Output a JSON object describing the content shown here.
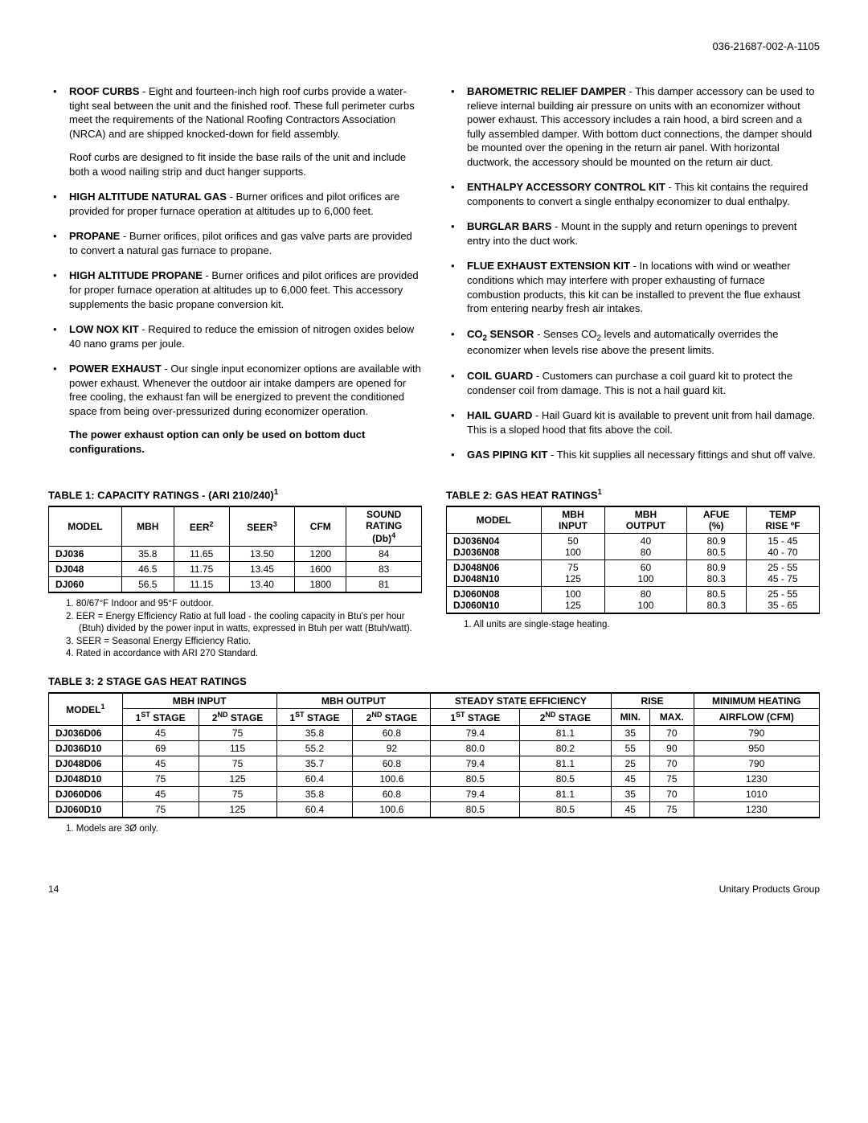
{
  "doc_number": "036-21687-002-A-1105",
  "left_items": [
    {
      "term": "ROOF CURBS",
      "text": " - Eight and fourteen-inch high roof curbs provide a water-tight seal between the unit and the finished roof. These full perimeter curbs meet the requirements of the National Roofing Contractors Association (NRCA) and are shipped knocked-down for field assembly.",
      "sub": "Roof curbs are designed to fit inside the base rails of the unit and include both a wood nailing strip and duct hanger supports."
    },
    {
      "term": "HIGH ALTITUDE NATURAL GAS",
      "text": " - Burner orifices and pilot orifices are provided for proper furnace operation at altitudes up to 6,000 feet."
    },
    {
      "term": "PROPANE",
      "text": " - Burner orifices, pilot orifices and gas valve parts are provided to convert a natural gas furnace to propane."
    },
    {
      "term": "HIGH ALTITUDE PROPANE",
      "text": " - Burner orifices and pilot orifices are provided for proper furnace operation at altitudes up to 6,000 feet. This accessory supplements the basic propane conversion kit."
    },
    {
      "term": "LOW NOX KIT",
      "text": " - Required to reduce the emission of nitrogen oxides below 40 nano grams per joule."
    },
    {
      "term": "POWER EXHAUST",
      "text": " - Our single input economizer options are available with power exhaust. Whenever the outdoor air intake dampers are opened for free cooling, the exhaust fan will be energized to prevent the conditioned space from being over-pressurized during economizer operation.",
      "note": "The power exhaust option can only be used on bottom duct configurations."
    }
  ],
  "right_items": [
    {
      "term": "BAROMETRIC RELIEF DAMPER",
      "text": " - This damper accessory can be used to relieve internal building air pressure on units with an economizer without power exhaust. This accessory includes a rain hood, a bird screen and a fully assembled damper. With bottom duct connections, the damper should be mounted over the opening in the return air panel. With horizontal ductwork, the accessory should be mounted on the return air duct."
    },
    {
      "term": "ENTHALPY ACCESSORY CONTROL KIT",
      "text": " - This kit contains the required components to convert a single enthalpy economizer to dual enthalpy."
    },
    {
      "term": "BURGLAR BARS",
      "text": " - Mount in the supply and return openings to prevent entry into the duct work."
    },
    {
      "term": "FLUE EXHAUST EXTENSION KIT",
      "text": " - In locations with wind or weather conditions which may interfere with proper exhausting of furnace combustion products, this kit can be installed to prevent the flue exhaust from entering nearby fresh air intakes."
    },
    {
      "term": "CO",
      "sub2": "2",
      "term2": " SENSOR",
      "text": " - Senses CO",
      "sub2b": "2",
      "text2": " levels and automatically overrides the economizer when levels rise above the present limits."
    },
    {
      "term": "COIL GUARD",
      "text": " - Customers can purchase a coil guard kit to protect the condenser coil from damage. This is not a hail guard kit."
    },
    {
      "term": "HAIL GUARD",
      "text": " - Hail Guard kit is available to prevent unit from hail damage. This is a sloped hood that fits above the coil."
    },
    {
      "term": "GAS PIPING KIT",
      "text": " - This kit supplies all necessary fittings and shut off valve."
    }
  ],
  "t1": {
    "title_a": "TABLE 1: CAPACITY RATINGS - (ARI 210/240)",
    "title_sup": "1",
    "headers": [
      "MODEL",
      "MBH",
      "EER",
      "SEER",
      "CFM",
      "SOUND RATING (Db)"
    ],
    "header_sup": {
      "EER": "2",
      "SEER": "3",
      "SOUND": "4"
    },
    "rows": [
      [
        "DJ036",
        "35.8",
        "11.65",
        "13.50",
        "1200",
        "84"
      ],
      [
        "DJ048",
        "46.5",
        "11.75",
        "13.45",
        "1600",
        "83"
      ],
      [
        "DJ060",
        "56.5",
        "11.15",
        "13.40",
        "1800",
        "81"
      ]
    ],
    "footnotes": [
      "1.  80/67°F Indoor and 95°F outdoor.",
      "2.  EER = Energy Efficiency Ratio at full load - the cooling capacity in Btu's per hour (Btuh) divided by the power input in watts, expressed in Btuh per watt (Btuh/watt).",
      "3.  SEER = Seasonal Energy Efficiency Ratio.",
      "4.  Rated in accordance with ARI 270 Standard."
    ]
  },
  "t2": {
    "title_a": "TABLE 2: GAS HEAT RATINGS",
    "title_sup": "1",
    "headers": [
      "MODEL",
      "MBH INPUT",
      "MBH OUTPUT",
      "AFUE (%)",
      "TEMP RISE ºF"
    ],
    "rows": [
      [
        "DJ036N04",
        "50",
        "40",
        "80.9",
        "15 - 45"
      ],
      [
        "DJ036N08",
        "100",
        "80",
        "80.5",
        "40 - 70"
      ],
      [
        "DJ048N06",
        "75",
        "60",
        "80.9",
        "25 - 55"
      ],
      [
        "DJ048N10",
        "125",
        "100",
        "80.3",
        "45 - 75"
      ],
      [
        "DJ060N08",
        "100",
        "80",
        "80.5",
        "25 - 55"
      ],
      [
        "DJ060N10",
        "125",
        "100",
        "80.3",
        "35 - 65"
      ]
    ],
    "footnotes": [
      "1.  All units are single-stage heating."
    ]
  },
  "t3": {
    "title_a": "TABLE 3: 2 STAGE GAS HEAT RATINGS",
    "model_sup": "1",
    "groups": [
      "MBH INPUT",
      "MBH OUTPUT",
      "STEADY STATE EFFICIENCY",
      "RISE",
      "MINIMUM HEATING"
    ],
    "sub": [
      "1ST STAGE",
      "2ND STAGE",
      "1ST STAGE",
      "2ND STAGE",
      "1ST STAGE",
      "2ND STAGE",
      "MIN.",
      "MAX.",
      "AIRFLOW (CFM)"
    ],
    "rows": [
      [
        "DJ036D06",
        "45",
        "75",
        "35.8",
        "60.8",
        "79.4",
        "81.1",
        "35",
        "70",
        "790"
      ],
      [
        "DJ036D10",
        "69",
        "115",
        "55.2",
        "92",
        "80.0",
        "80.2",
        "55",
        "90",
        "950"
      ],
      [
        "DJ048D06",
        "45",
        "75",
        "35.7",
        "60.8",
        "79.4",
        "81.1",
        "25",
        "70",
        "790"
      ],
      [
        "DJ048D10",
        "75",
        "125",
        "60.4",
        "100.6",
        "80.5",
        "80.5",
        "45",
        "75",
        "1230"
      ],
      [
        "DJ060D06",
        "45",
        "75",
        "35.8",
        "60.8",
        "79.4",
        "81.1",
        "35",
        "70",
        "1010"
      ],
      [
        "DJ060D10",
        "75",
        "125",
        "60.4",
        "100.6",
        "80.5",
        "80.5",
        "45",
        "75",
        "1230"
      ]
    ],
    "footnotes": [
      "1.  Models are 3Ø only."
    ]
  },
  "footer": {
    "page": "14",
    "right": "Unitary Products Group"
  }
}
